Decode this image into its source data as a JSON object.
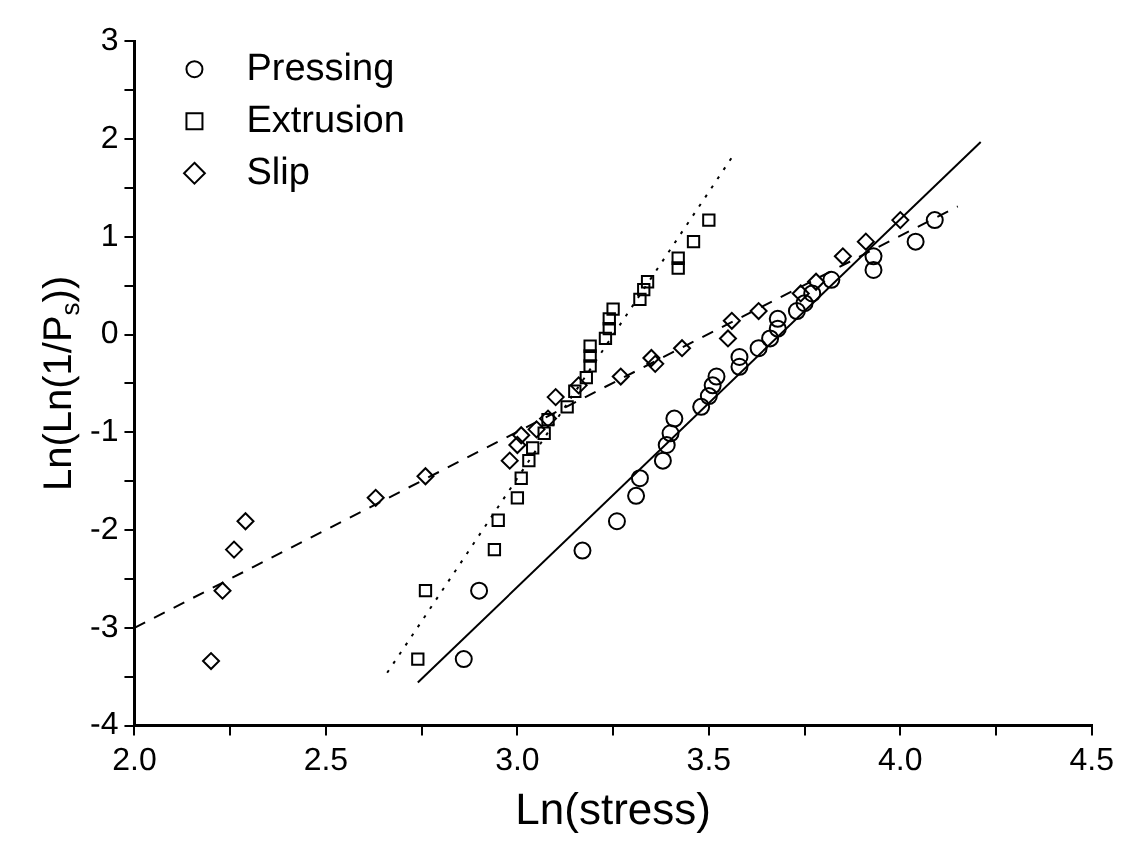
{
  "chart_data": {
    "type": "scatter",
    "xlabel": "Ln(stress)",
    "ylabel": "Ln(Ln(1/P$_{s}$))",
    "xlim": [
      2.0,
      4.5
    ],
    "ylim": [
      -4,
      3
    ],
    "xticks": [
      {
        "value": 2.0,
        "label": "2.0"
      },
      {
        "value": 2.25,
        "label": null
      },
      {
        "value": 2.5,
        "label": "2.5"
      },
      {
        "value": 2.75,
        "label": null
      },
      {
        "value": 3.0,
        "label": "3.0"
      },
      {
        "value": 3.25,
        "label": null
      },
      {
        "value": 3.5,
        "label": "3.5"
      },
      {
        "value": 3.75,
        "label": null
      },
      {
        "value": 4.0,
        "label": "4.0"
      },
      {
        "value": 4.25,
        "label": null
      },
      {
        "value": 4.5,
        "label": "4.5"
      }
    ],
    "yticks": [
      -4,
      {
        "value": -3.5,
        "label": null
      },
      -3,
      {
        "value": -2.5,
        "label": null
      },
      -2,
      {
        "value": -1.5,
        "label": null
      },
      -1,
      {
        "value": -0.5,
        "label": null
      },
      0,
      {
        "value": 0.5,
        "label": null
      },
      1,
      {
        "value": 1.5,
        "label": null
      },
      2,
      {
        "value": 2.5,
        "label": null
      },
      3
    ],
    "grid": false,
    "legend": "top left",
    "series": [
      {
        "name": "Pressing",
        "type": "scatter",
        "marker": "circle",
        "color": "#000000",
        "x": [
          2.86,
          2.9,
          3.17,
          3.26,
          3.31,
          3.32,
          3.38,
          3.39,
          3.4,
          3.41,
          3.48,
          3.5,
          3.51,
          3.52,
          3.58,
          3.58,
          3.63,
          3.66,
          3.68,
          3.68,
          3.73,
          3.75,
          3.77,
          3.82,
          3.93,
          3.93,
          4.04,
          4.09
        ],
        "values": [
          -3.32,
          -2.62,
          -2.21,
          -1.91,
          -1.65,
          -1.47,
          -1.29,
          -1.13,
          -1.01,
          -0.86,
          -0.74,
          -0.63,
          -0.52,
          -0.43,
          -0.33,
          -0.23,
          -0.14,
          -0.04,
          0.06,
          0.16,
          0.24,
          0.32,
          0.42,
          0.56,
          0.66,
          0.8,
          0.95,
          1.17
        ]
      },
      {
        "name": "Extrusion",
        "type": "scatter",
        "marker": "square",
        "color": "#000000",
        "x": [
          2.74,
          2.76,
          2.94,
          2.95,
          3.0,
          3.01,
          3.03,
          3.04,
          3.07,
          3.08,
          3.13,
          3.15,
          3.18,
          3.19,
          3.19,
          3.19,
          3.23,
          3.24,
          3.24,
          3.25,
          3.32,
          3.33,
          3.34,
          3.42,
          3.42,
          3.46,
          3.5
        ],
        "values": [
          -3.32,
          -2.62,
          -2.2,
          -1.9,
          -1.67,
          -1.47,
          -1.29,
          -1.16,
          -1.01,
          -0.87,
          -0.74,
          -0.58,
          -0.44,
          -0.32,
          -0.22,
          -0.12,
          -0.04,
          0.06,
          0.16,
          0.26,
          0.36,
          0.46,
          0.54,
          0.68,
          0.78,
          0.95,
          1.17
        ]
      },
      {
        "name": "Slip",
        "type": "scatter",
        "marker": "diamond",
        "color": "#000000",
        "x": [
          2.2,
          2.23,
          2.26,
          2.29,
          2.63,
          2.76,
          2.98,
          3.0,
          3.01,
          3.05,
          3.08,
          3.1,
          3.16,
          3.27,
          3.35,
          3.36,
          3.43,
          3.55,
          3.56,
          3.63,
          3.74,
          3.78,
          3.85,
          3.91,
          4.0
        ],
        "values": [
          -3.34,
          -2.62,
          -2.2,
          -1.91,
          -1.67,
          -1.45,
          -1.29,
          -1.13,
          -1.03,
          -0.97,
          -0.86,
          -0.64,
          -0.52,
          -0.43,
          -0.24,
          -0.3,
          -0.14,
          -0.04,
          0.14,
          0.24,
          0.42,
          0.54,
          0.8,
          0.95,
          1.17
        ]
      },
      {
        "type": "line",
        "marker": "none",
        "line_style": "solid",
        "color": "#000000",
        "x": [
          2.74,
          4.21
        ],
        "values": [
          -3.56,
          1.97
        ]
      },
      {
        "type": "line",
        "marker": "none",
        "line_style": "dotted",
        "color": "#000000",
        "x": [
          2.66,
          3.56
        ],
        "values": [
          -3.46,
          1.81
        ]
      },
      {
        "type": "line",
        "marker": "none",
        "line_style": "dashed",
        "color": "#000000",
        "x": [
          2.0,
          4.15
        ],
        "values": [
          -3.0,
          1.31
        ]
      }
    ]
  }
}
